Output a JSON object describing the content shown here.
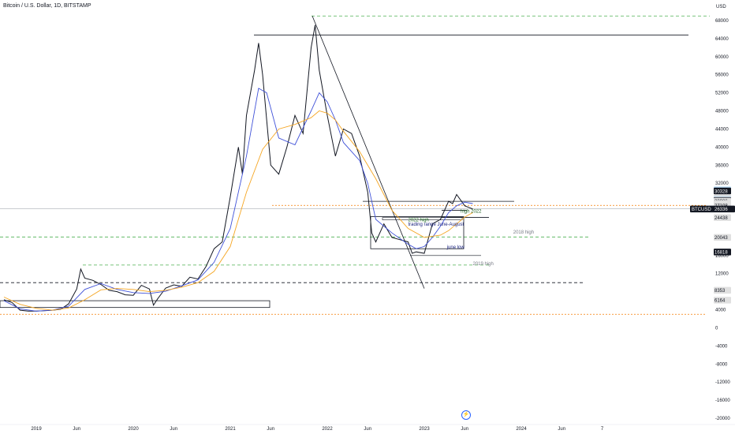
{
  "header": {
    "title": "Bitcoin / U.S. Dollar, 1D, BITSTAMP"
  },
  "chart_data": {
    "type": "line",
    "title": "Bitcoin / U.S. Dollar, 1D, BITSTAMP",
    "currency": "USD",
    "y_ticks": [
      68000,
      64000,
      60000,
      56000,
      52000,
      48000,
      44000,
      40000,
      36000,
      32000,
      28000,
      24000,
      20000,
      16000,
      12000,
      8000,
      4000,
      0,
      -4000,
      -8000,
      -12000,
      -16000,
      -20000
    ],
    "ylim": [
      -20000,
      70000
    ],
    "x_ticks": [
      {
        "label": "2019",
        "t": 0
      },
      {
        "label": "Jun",
        "t": 5
      },
      {
        "label": "2020",
        "t": 12
      },
      {
        "label": "Jun",
        "t": 17
      },
      {
        "label": "2021",
        "t": 24
      },
      {
        "label": "Jun",
        "t": 29
      },
      {
        "label": "2022",
        "t": 36
      },
      {
        "label": "Jun",
        "t": 41
      },
      {
        "label": "2023",
        "t": 48
      },
      {
        "label": "Jun",
        "t": 53
      },
      {
        "label": "2024",
        "t": 60
      },
      {
        "label": "Jun",
        "t": 65
      },
      {
        "label": "7",
        "t": 70
      }
    ],
    "grid": false,
    "series": [
      {
        "name": "BTCUSD",
        "color": "#131722",
        "points": [
          [
            -4,
            6200
          ],
          [
            -3,
            5600
          ],
          [
            -2,
            3900
          ],
          [
            -1,
            3700
          ],
          [
            0,
            3700
          ],
          [
            1,
            3800
          ],
          [
            2,
            3900
          ],
          [
            3,
            4100
          ],
          [
            4,
            5300
          ],
          [
            5,
            8600
          ],
          [
            5.5,
            13000
          ],
          [
            6,
            11000
          ],
          [
            7,
            10500
          ],
          [
            8,
            9600
          ],
          [
            9,
            8300
          ],
          [
            10,
            8000
          ],
          [
            11,
            7300
          ],
          [
            12,
            7200
          ],
          [
            13,
            9400
          ],
          [
            14,
            8600
          ],
          [
            14.5,
            5000
          ],
          [
            15,
            6400
          ],
          [
            16,
            8800
          ],
          [
            17,
            9500
          ],
          [
            18,
            9200
          ],
          [
            19,
            11200
          ],
          [
            20,
            10800
          ],
          [
            21,
            13600
          ],
          [
            22,
            17500
          ],
          [
            23,
            19000
          ],
          [
            24,
            29000
          ],
          [
            25,
            40000
          ],
          [
            25.5,
            34000
          ],
          [
            26,
            47000
          ],
          [
            27,
            57000
          ],
          [
            27.5,
            63000
          ],
          [
            28,
            56000
          ],
          [
            29,
            36000
          ],
          [
            30,
            34000
          ],
          [
            31,
            40000
          ],
          [
            32,
            47000
          ],
          [
            33,
            43000
          ],
          [
            34,
            62000
          ],
          [
            34.5,
            67000
          ],
          [
            35,
            57000
          ],
          [
            36,
            47000
          ],
          [
            37,
            38000
          ],
          [
            38,
            44000
          ],
          [
            39,
            43000
          ],
          [
            40,
            38000
          ],
          [
            41,
            30000
          ],
          [
            41.5,
            21000
          ],
          [
            42,
            19000
          ],
          [
            43,
            23000
          ],
          [
            44,
            20000
          ],
          [
            45,
            19500
          ],
          [
            46,
            19000
          ],
          [
            46.5,
            16500
          ],
          [
            47,
            16800
          ],
          [
            48,
            16500
          ],
          [
            49,
            23000
          ],
          [
            50,
            24000
          ],
          [
            51,
            28000
          ],
          [
            51.5,
            27500
          ],
          [
            52,
            29500
          ],
          [
            53,
            27000
          ],
          [
            54,
            26300
          ]
        ]
      },
      {
        "name": "MA (blue)",
        "color": "#3f51d8",
        "points": [
          [
            -4,
            6000
          ],
          [
            -2,
            4200
          ],
          [
            0,
            3700
          ],
          [
            2,
            3900
          ],
          [
            4,
            4800
          ],
          [
            6,
            8500
          ],
          [
            8,
            9800
          ],
          [
            10,
            8500
          ],
          [
            12,
            7800
          ],
          [
            14,
            7600
          ],
          [
            16,
            8100
          ],
          [
            18,
            9300
          ],
          [
            20,
            10600
          ],
          [
            22,
            14500
          ],
          [
            24,
            22000
          ],
          [
            26,
            38000
          ],
          [
            27.5,
            53000
          ],
          [
            28.5,
            52000
          ],
          [
            30,
            42000
          ],
          [
            32,
            40500
          ],
          [
            34,
            48000
          ],
          [
            35,
            52000
          ],
          [
            36,
            50000
          ],
          [
            37,
            46000
          ],
          [
            38,
            41000
          ],
          [
            40,
            37000
          ],
          [
            41,
            32000
          ],
          [
            42,
            24000
          ],
          [
            44,
            21000
          ],
          [
            46,
            18500
          ],
          [
            47,
            17500
          ],
          [
            48,
            18000
          ],
          [
            49,
            20000
          ],
          [
            50,
            22500
          ],
          [
            51,
            25500
          ],
          [
            52,
            27000
          ],
          [
            53,
            27800
          ],
          [
            54,
            27500
          ]
        ]
      },
      {
        "name": "MA (orange)",
        "color": "#f5a623",
        "points": [
          [
            -4,
            6800
          ],
          [
            -2,
            5200
          ],
          [
            0,
            4300
          ],
          [
            2,
            3900
          ],
          [
            4,
            4400
          ],
          [
            6,
            6200
          ],
          [
            8,
            8400
          ],
          [
            10,
            8700
          ],
          [
            12,
            8500
          ],
          [
            14,
            8000
          ],
          [
            16,
            8300
          ],
          [
            18,
            9000
          ],
          [
            20,
            10000
          ],
          [
            22,
            12500
          ],
          [
            24,
            18000
          ],
          [
            26,
            30000
          ],
          [
            28,
            39500
          ],
          [
            30,
            44000
          ],
          [
            32,
            45000
          ],
          [
            34,
            46500
          ],
          [
            35,
            48000
          ],
          [
            36,
            47500
          ],
          [
            37,
            46000
          ],
          [
            38,
            43500
          ],
          [
            40,
            39000
          ],
          [
            42,
            33000
          ],
          [
            44,
            26000
          ],
          [
            46,
            22000
          ],
          [
            48,
            20000
          ],
          [
            50,
            20500
          ],
          [
            51,
            21500
          ],
          [
            52,
            23000
          ],
          [
            53,
            24500
          ],
          [
            54,
            25500
          ]
        ]
      }
    ],
    "horizontal_levels": [
      {
        "value": 69000,
        "style": "dashed",
        "color": "#4caf50"
      },
      {
        "value": 64800,
        "style": "solid",
        "color": "#131722"
      },
      {
        "value": 28000,
        "style": "solid",
        "color": "#131722"
      },
      {
        "value": 27100,
        "style": "dotted",
        "color": "#f57c00"
      },
      {
        "value": 20100,
        "style": "dashed",
        "color": "#4caf50"
      },
      {
        "value": 13900,
        "style": "dashed",
        "color": "#4caf50"
      },
      {
        "value": 10000,
        "style": "dashed",
        "color": "#131722"
      },
      {
        "value": 3000,
        "style": "dotted",
        "color": "#f57c00"
      }
    ],
    "price_labels": [
      {
        "value": 30560,
        "bg": "#bbdefb",
        "fg": "#131722"
      },
      {
        "value": 30328,
        "bg": "#131722",
        "fg": "#ffffff"
      },
      {
        "value": 28741,
        "bg": "#e0e0e0",
        "fg": "#131722"
      },
      {
        "value": 28433,
        "bg": "#bbdefb",
        "fg": "#131722"
      },
      {
        "value": 28306,
        "bg": "#e0e0e0",
        "fg": "#131722"
      },
      {
        "value": 28206,
        "bg": "#131722",
        "fg": "#ffffff"
      },
      {
        "value": 28086,
        "bg": "#e0e0e0",
        "fg": "#131722"
      },
      {
        "value": 27515,
        "bg": "#e0e0e0",
        "fg": "#131722"
      },
      {
        "value": 27271,
        "bg": "#e0e0e0",
        "fg": "#131722"
      },
      {
        "value": 27108,
        "bg": "#e0e0e0",
        "fg": "#131722"
      },
      {
        "value": 26336,
        "bg": "#131722",
        "fg": "#ffffff",
        "symbol": "BTCUSD"
      },
      {
        "value": 24438,
        "bg": "#e0e0e0",
        "fg": "#131722"
      },
      {
        "value": 20043,
        "bg": "#e0e0e0",
        "fg": "#131722"
      },
      {
        "value": 16818,
        "bg": "#131722",
        "fg": "#ffffff"
      },
      {
        "value": 8353,
        "bg": "#e0e0e0",
        "fg": "#131722"
      },
      {
        "value": 6164,
        "bg": "#e0e0e0",
        "fg": "#131722"
      }
    ],
    "annotations": [
      {
        "text": "high 2022",
        "color": "#1b5e20",
        "t": 52.5,
        "y": 25500
      },
      {
        "text": "2022 high",
        "color": "#2e7d32",
        "t": 46,
        "y": 23600
      },
      {
        "text": "trading range June-August",
        "color": "#1a237e",
        "t": 46,
        "y": 22600
      },
      {
        "text": "2018 high",
        "color": "#787b86",
        "t": 59,
        "y": 20900
      },
      {
        "text": "june low",
        "color": "#1a237e",
        "t": 50.8,
        "y": 17500
      },
      {
        "text": "2019 high",
        "color": "#787b86",
        "t": 54,
        "y": 13900
      }
    ]
  }
}
